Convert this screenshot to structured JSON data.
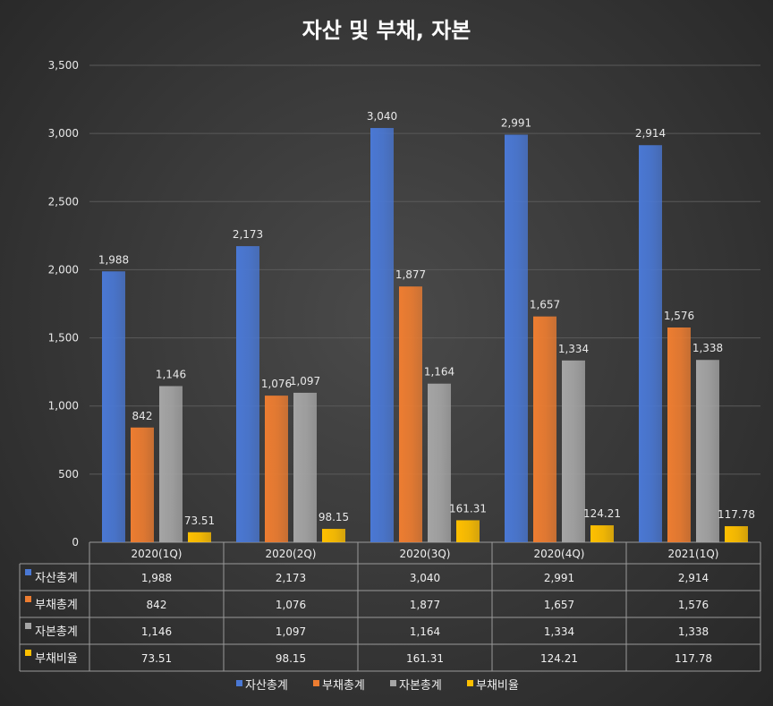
{
  "chart_data": {
    "type": "bar",
    "title": "자산 및 부채, 자본",
    "categories": [
      "2020(1Q)",
      "2020(2Q)",
      "2020(3Q)",
      "2020(4Q)",
      "2021(1Q)"
    ],
    "ylim": [
      0,
      3500
    ],
    "yticks": [
      "0",
      "500",
      "1,000",
      "1,500",
      "2,000",
      "2,500",
      "3,000",
      "3,500"
    ],
    "grid": true,
    "legend_position": "bottom",
    "series": [
      {
        "name": "자산총계",
        "color": "#4a78d4",
        "values": [
          1988,
          2173,
          3040,
          2991,
          2914
        ],
        "labels": [
          "1,988",
          "2,173",
          "3,040",
          "2,991",
          "2,914"
        ]
      },
      {
        "name": "부채총계",
        "color": "#ed7d31",
        "values": [
          842,
          1076,
          1877,
          1657,
          1576
        ],
        "labels": [
          "842",
          "1,076",
          "1,877",
          "1,657",
          "1,576"
        ]
      },
      {
        "name": "자본총계",
        "color": "#a5a5a5",
        "values": [
          1146,
          1097,
          1164,
          1334,
          1338
        ],
        "labels": [
          "1,146",
          "1,097",
          "1,164",
          "1,334",
          "1,338"
        ]
      },
      {
        "name": "부채비율",
        "color": "#ffc000",
        "values": [
          73.51,
          98.15,
          161.31,
          124.21,
          117.78
        ],
        "labels": [
          "73.51",
          "98.15",
          "161.31",
          "124.21",
          "117.78"
        ]
      }
    ]
  }
}
